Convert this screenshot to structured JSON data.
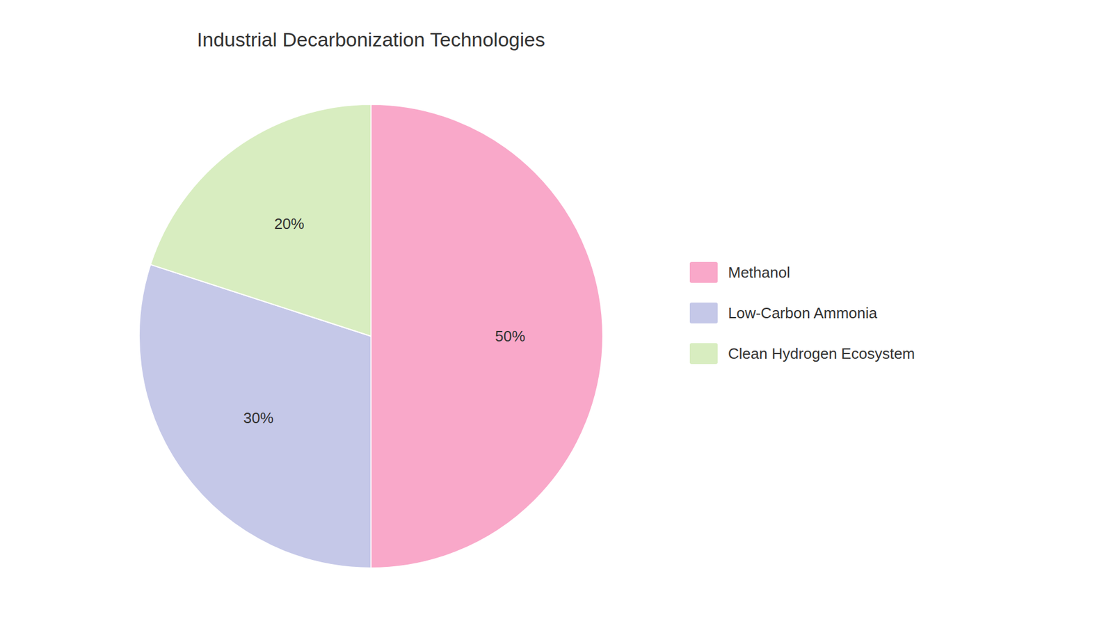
{
  "chart_data": {
    "type": "pie",
    "title": "Industrial Decarbonization Technologies",
    "categories": [
      "Methanol",
      "Low-Carbon Ammonia",
      "Clean Hydrogen Ecosystem"
    ],
    "values": [
      50,
      30,
      20
    ],
    "value_labels": [
      "50%",
      "30%",
      "20%"
    ],
    "colors": [
      "#F9A8C9",
      "#C5C8E8",
      "#D8EDC0"
    ],
    "data_labels": true,
    "legend": "right"
  }
}
